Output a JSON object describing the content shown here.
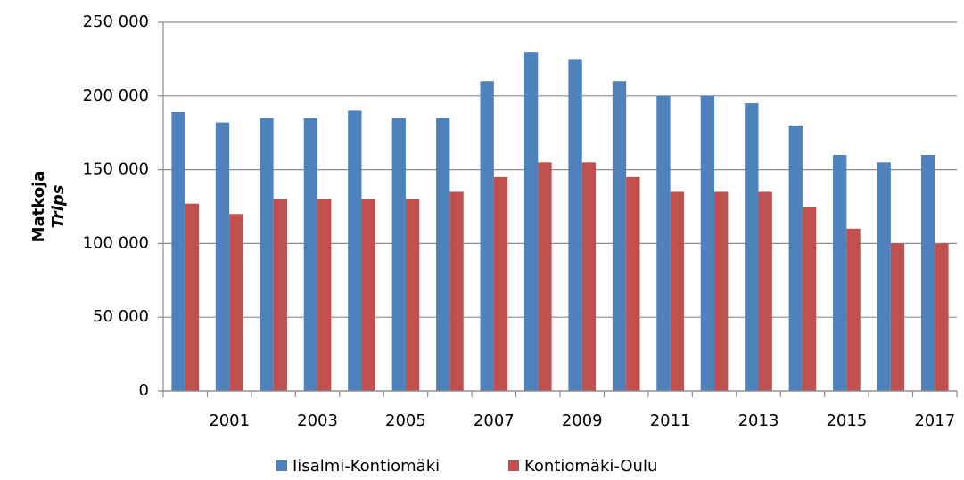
{
  "chart_data": {
    "type": "bar",
    "y_label": "Matkoja",
    "y_label_en": "Trips",
    "categories": [
      null,
      "2001",
      null,
      "2003",
      null,
      "2005",
      null,
      "2007",
      null,
      "2009",
      null,
      "2011",
      null,
      "2013",
      null,
      "2015",
      null,
      "2017"
    ],
    "series": [
      {
        "name": "Iisalmi-Kontiomäki",
        "color": "#4f81bd",
        "values": [
          189000,
          182000,
          185000,
          185000,
          190000,
          185000,
          185000,
          210000,
          230000,
          225000,
          210000,
          200000,
          200000,
          195000,
          180000,
          160000,
          155000,
          160000
        ]
      },
      {
        "name": "Kontiomäki-Oulu",
        "color": "#c0504d",
        "values": [
          127000,
          120000,
          130000,
          130000,
          130000,
          130000,
          135000,
          145000,
          155000,
          155000,
          145000,
          135000,
          135000,
          135000,
          125000,
          110000,
          100000,
          100000
        ]
      }
    ],
    "ylim": [
      0,
      250000
    ],
    "yticks": [
      0,
      {
        "value": 50000,
        "label": "50 000"
      },
      {
        "value": 100000,
        "label": "100 000"
      },
      {
        "value": 150000,
        "label": "150 000"
      },
      {
        "value": 200000,
        "label": "200 000"
      },
      {
        "value": 250000,
        "label": "250 000"
      }
    ],
    "grid": true,
    "legend": "bottom"
  }
}
